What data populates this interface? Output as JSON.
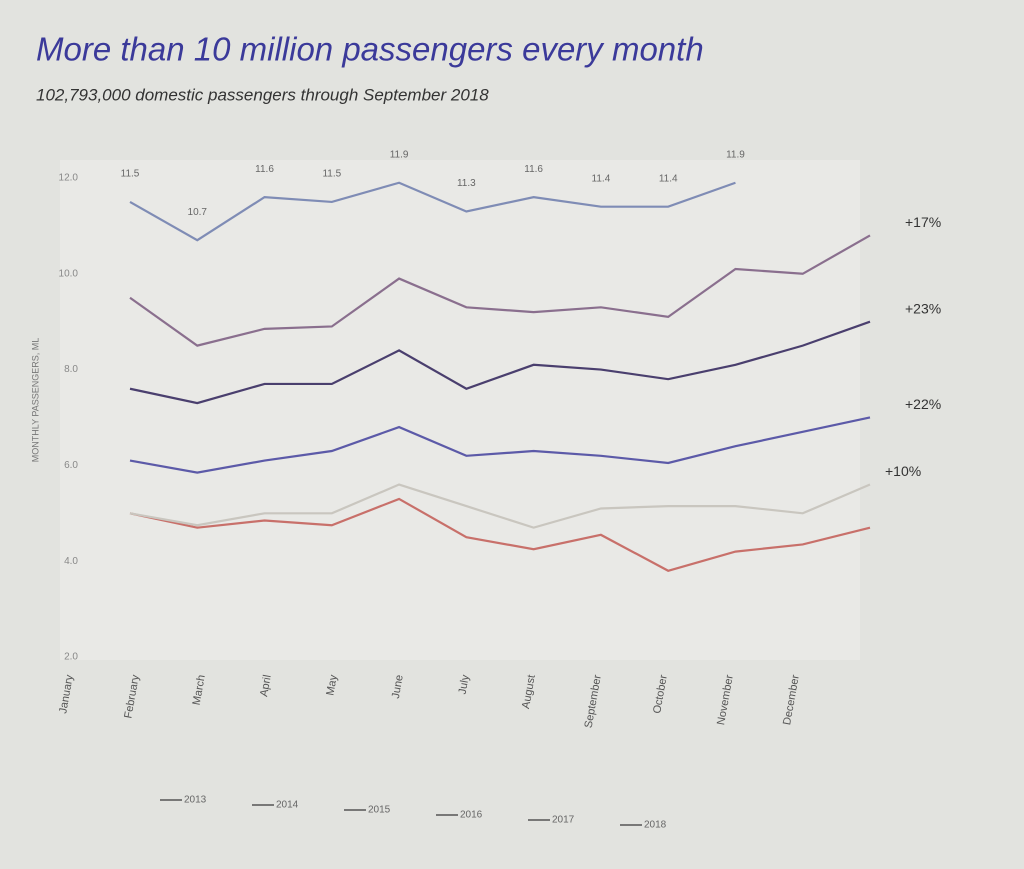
{
  "chart_data": {
    "type": "line",
    "title": "More than 10 million passengers every month",
    "subtitle": "102,793,000 domestic passengers through September 2018",
    "y_label": "MONTHLY PASSENGERS, ML",
    "categories": [
      "January",
      "February",
      "March",
      "April",
      "May",
      "June",
      "July",
      "August",
      "September",
      "October",
      "November",
      "December"
    ],
    "series": [
      {
        "name": "2013",
        "color": "#c8706a",
        "values": [
          5.0,
          4.7,
          4.85,
          4.75,
          5.3,
          4.5,
          4.25,
          4.55,
          3.8,
          4.2,
          4.35,
          4.7
        ]
      },
      {
        "name": "2014",
        "color": "#c9c6bf",
        "values": [
          5.0,
          4.75,
          5.0,
          5.0,
          5.6,
          5.15,
          4.7,
          5.1,
          5.15,
          5.15,
          5.0,
          5.6
        ]
      },
      {
        "name": "2015",
        "color": "#5c5aa8",
        "values": [
          6.1,
          5.85,
          6.1,
          6.3,
          6.8,
          6.2,
          6.3,
          6.2,
          6.05,
          6.4,
          6.7,
          7.0
        ]
      },
      {
        "name": "2016",
        "color": "#4a3f6e",
        "values": [
          7.6,
          7.3,
          7.7,
          7.7,
          8.4,
          7.6,
          8.1,
          8.0,
          7.8,
          8.1,
          8.5,
          9.0
        ]
      },
      {
        "name": "2017",
        "color": "#8a6f8e",
        "values": [
          9.5,
          8.5,
          8.85,
          8.9,
          9.9,
          9.3,
          9.2,
          9.3,
          9.1,
          10.1,
          10.0,
          10.8
        ]
      },
      {
        "name": "2018",
        "color": "#7f8cb5",
        "values": [
          11.5,
          10.7,
          11.6,
          11.5,
          11.9,
          11.3,
          11.6,
          11.4,
          11.4,
          11.9,
          null,
          null
        ]
      }
    ],
    "annotations": [
      "+17%",
      "+23%",
      "+22%",
      "+10%"
    ],
    "ylim": [
      2,
      12.4
    ],
    "yticks": [
      {
        "value": 2,
        "label": "2.0"
      },
      {
        "value": 4,
        "label": "4.0"
      },
      {
        "value": 6,
        "label": "6.0"
      },
      {
        "value": 8,
        "label": "8.0"
      },
      {
        "value": 10,
        "label": "10.0"
      },
      {
        "value": 12,
        "label": "12.0"
      }
    ],
    "grid": false
  }
}
